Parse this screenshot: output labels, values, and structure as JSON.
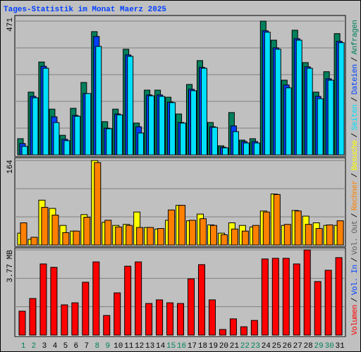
{
  "title": "Tages-Statistik im Monat Maerz 2025",
  "separator": "/",
  "chart_data": [
    {
      "type": "bar",
      "ylim": [
        0,
        471
      ],
      "yticks": [
        471
      ],
      "grid_divisions": 5,
      "series": [
        {
          "name": "Anfragen",
          "color": "#00805c",
          "values": [
            57,
            221,
            327,
            161,
            69,
            164,
            255,
            434,
            117,
            161,
            372,
            112,
            228,
            228,
            203,
            144,
            248,
            332,
            114,
            32,
            149,
            52,
            57,
            471,
            404,
            263,
            439,
            325,
            221,
            293,
            427
          ]
        },
        {
          "name": "Dateien",
          "color": "#0040ff",
          "values": [
            40,
            206,
            312,
            134,
            55,
            139,
            216,
            417,
            94,
            144,
            352,
            99,
            211,
            211,
            186,
            114,
            231,
            308,
            99,
            27,
            102,
            47,
            47,
            437,
            377,
            246,
            409,
            310,
            206,
            268,
            400
          ]
        },
        {
          "name": "Seiten",
          "color": "#00e0ff",
          "values": [
            30,
            201,
            305,
            114,
            50,
            136,
            216,
            382,
            92,
            141,
            347,
            77,
            208,
            206,
            184,
            112,
            226,
            305,
            97,
            25,
            82,
            42,
            42,
            432,
            372,
            236,
            404,
            305,
            198,
            263,
            395
          ]
        }
      ]
    },
    {
      "type": "bar",
      "ylim": [
        0,
        164
      ],
      "yticks": [
        164
      ],
      "grid_divisions": 3,
      "series": [
        {
          "name": "Besuche",
          "color": "#ffff00",
          "values": [
            23,
            11,
            87,
            71,
            38,
            27,
            59,
            164,
            44,
            38,
            40,
            64,
            34,
            31,
            48,
            77,
            47,
            60,
            39,
            23,
            43,
            38,
            35,
            66,
            99,
            38,
            67,
            56,
            43,
            38,
            38
          ]
        },
        {
          "name": "Rechner",
          "color": "#ff8000",
          "values": [
            43,
            15,
            73,
            58,
            24,
            27,
            54,
            160,
            48,
            35,
            38,
            34,
            34,
            32,
            68,
            77,
            48,
            51,
            38,
            20,
            31,
            27,
            38,
            64,
            98,
            40,
            66,
            40,
            32,
            39,
            47
          ]
        }
      ]
    },
    {
      "type": "bar",
      "ylim": [
        0,
        3.77
      ],
      "yticks": [
        {
          "value": 3.77,
          "label": "3.77 MB"
        }
      ],
      "grid_divisions": 3,
      "categories": [
        "1",
        "2",
        "3",
        "4",
        "5",
        "6",
        "7",
        "8",
        "9",
        "10",
        "11",
        "12",
        "13",
        "14",
        "15",
        "16",
        "17",
        "18",
        "19",
        "20",
        "21",
        "22",
        "23",
        "24",
        "25",
        "26",
        "27",
        "28",
        "29",
        "30",
        "31"
      ],
      "category_colors": [
        "#00805c",
        "#00805c",
        "#000000",
        "#000000",
        "#000000",
        "#000000",
        "#000000",
        "#00805c",
        "#00805c",
        "#000000",
        "#000000",
        "#000000",
        "#000000",
        "#000000",
        "#00805c",
        "#00805c",
        "#000000",
        "#000000",
        "#000000",
        "#000000",
        "#000000",
        "#00805c",
        "#00805c",
        "#000000",
        "#000000",
        "#000000",
        "#000000",
        "#000000",
        "#00805c",
        "#00805c",
        "#000000"
      ],
      "series": [
        {
          "name": "Volumen",
          "color": "#ff0000",
          "values": [
            1.06,
            1.62,
            3.15,
            3.0,
            1.34,
            1.43,
            2.34,
            3.24,
            0.87,
            1.87,
            3.05,
            3.24,
            1.4,
            1.56,
            1.43,
            1.4,
            2.49,
            3.12,
            1.56,
            0.25,
            0.72,
            0.37,
            0.65,
            3.37,
            3.4,
            3.4,
            3.15,
            3.77,
            2.37,
            2.87,
            3.43
          ]
        },
        {
          "name": "Vol. In",
          "color": "#0040ff"
        },
        {
          "name": "Vol. Out",
          "color": "#606060"
        }
      ]
    }
  ]
}
